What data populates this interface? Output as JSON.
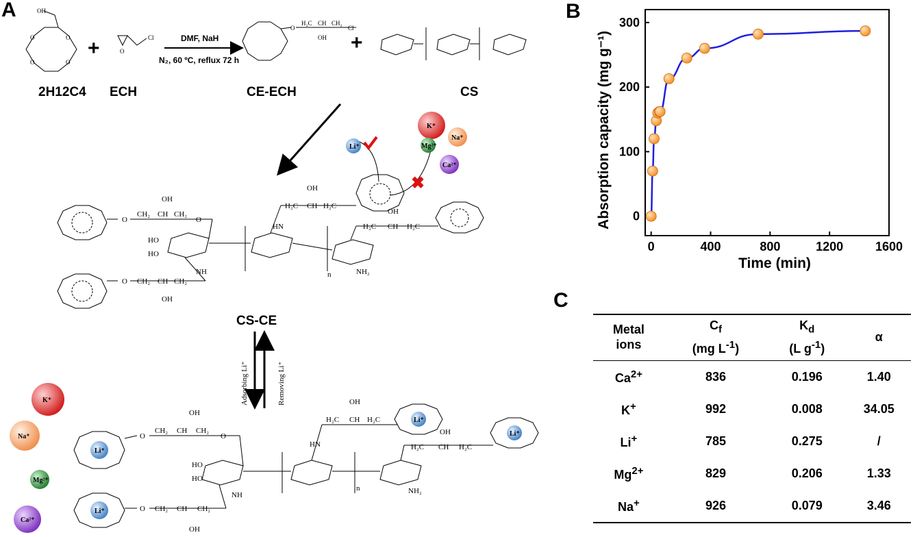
{
  "panels": {
    "a": "A",
    "b": "B",
    "c": "C"
  },
  "scheme": {
    "reagents": [
      "2H12C4",
      "ECH",
      "CE-ECH",
      "CS"
    ],
    "conditions_top": "DMF, NaH",
    "conditions_bottom": "N₂, 60 ºC, reflux 72 h",
    "product": "CS-CE",
    "adsorb": "Adsorbing Li⁺",
    "remove": "Removing Li⁺",
    "ions": {
      "li": "Li⁺",
      "k": "K⁺",
      "na": "Na⁺",
      "mg": "Mg²⁺",
      "ca": "Ca²⁺"
    },
    "ion_colors": {
      "li": "#5b9bd5",
      "k": "#e03030",
      "na": "#f5a36b",
      "mg": "#2e8b3a",
      "ca": "#8a3fc0"
    },
    "accept_color": "#e01010"
  },
  "chart_data": {
    "type": "line",
    "xlabel": "Time (min)",
    "ylabel": "Absorption capacity (mg g⁻¹)",
    "xlim": [
      -40,
      1600
    ],
    "ylim": [
      -30,
      320
    ],
    "xticks": [
      0,
      400,
      800,
      1200,
      1600
    ],
    "yticks": [
      0,
      100,
      200,
      300
    ],
    "series": [
      {
        "x": [
          0,
          10,
          20,
          35,
          45,
          55,
          60,
          120,
          240,
          360,
          720,
          1440
        ],
        "y": [
          0,
          70,
          120,
          148,
          160,
          162,
          162,
          213,
          245,
          260,
          282,
          287
        ],
        "line_color": "#1f1fe0",
        "marker_color": "#f28c1e"
      }
    ],
    "legend": false,
    "grid": false
  },
  "table": {
    "headers": [
      {
        "line1": "Metal",
        "line2": "ions"
      },
      {
        "line1": "C",
        "sub1": "f",
        "line2": "(mg L",
        "sup2": "-1",
        "end2": ")"
      },
      {
        "line1": "K",
        "sub1": "d",
        "line2": "(L g",
        "sup2": "-1",
        "end2": ")"
      },
      {
        "line1": "α"
      }
    ],
    "rows": [
      {
        "ion": "Ca",
        "charge": "2+",
        "cf": "836",
        "kd": "0.196",
        "alpha": "1.40"
      },
      {
        "ion": "K",
        "charge": "+",
        "cf": "992",
        "kd": "0.008",
        "alpha": "34.05"
      },
      {
        "ion": "Li",
        "charge": "+",
        "cf": "785",
        "kd": "0.275",
        "alpha": "/"
      },
      {
        "ion": "Mg",
        "charge": "2+",
        "cf": "829",
        "kd": "0.206",
        "alpha": "1.33"
      },
      {
        "ion": "Na",
        "charge": "+",
        "cf": "926",
        "kd": "0.079",
        "alpha": "3.46"
      }
    ]
  }
}
